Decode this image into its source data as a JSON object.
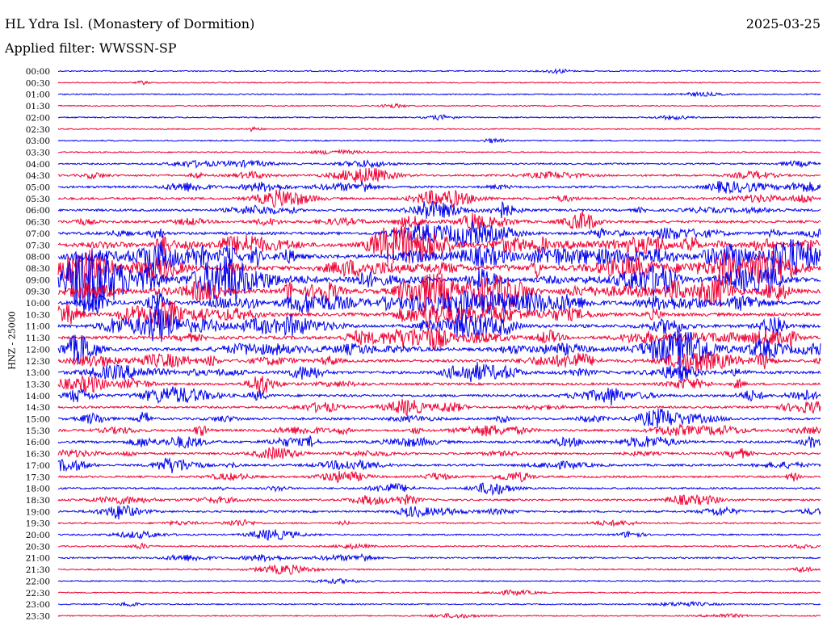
{
  "header": {
    "station": "HL Ydra Isl. (Monastery of Dormition)",
    "date": "2025-03-25",
    "filter": "Applied filter: WWSSN-SP"
  },
  "chart_data": {
    "type": "line",
    "title": "HL Ydra Isl. (Monastery of Dormition)",
    "date": "2025-03-25",
    "filter": "WWSSN-SP",
    "ylabel": "HNZ - 25000",
    "row_labels": [
      "00:00",
      "00:30",
      "01:00",
      "01:30",
      "02:00",
      "02:30",
      "03:00",
      "03:30",
      "04:00",
      "04:30",
      "05:00",
      "05:30",
      "06:00",
      "06:30",
      "07:00",
      "07:30",
      "08:00",
      "08:30",
      "09:00",
      "09:30",
      "10:00",
      "10:30",
      "11:00",
      "11:30",
      "12:00",
      "12:30",
      "13:00",
      "13:30",
      "14:00",
      "14:30",
      "15:00",
      "15:30",
      "16:00",
      "16:30",
      "17:00",
      "17:30",
      "18:00",
      "18:30",
      "19:00",
      "19:30",
      "20:00",
      "20:30",
      "21:00",
      "21:30",
      "22:00",
      "22:30",
      "23:00",
      "23:30"
    ],
    "colors": [
      "#0000ee",
      "#ee0033"
    ],
    "activity": [
      0.05,
      0.03,
      0.05,
      0.04,
      0.06,
      0.03,
      0.05,
      0.05,
      0.15,
      0.25,
      0.3,
      0.35,
      0.35,
      0.4,
      0.45,
      0.7,
      0.8,
      0.85,
      0.9,
      0.75,
      0.7,
      0.6,
      0.6,
      0.55,
      0.6,
      0.5,
      0.45,
      0.35,
      0.4,
      0.3,
      0.35,
      0.35,
      0.35,
      0.3,
      0.3,
      0.25,
      0.2,
      0.25,
      0.25,
      0.15,
      0.15,
      0.12,
      0.15,
      0.12,
      0.05,
      0.05,
      0.08,
      0.06
    ],
    "grid": false
  }
}
